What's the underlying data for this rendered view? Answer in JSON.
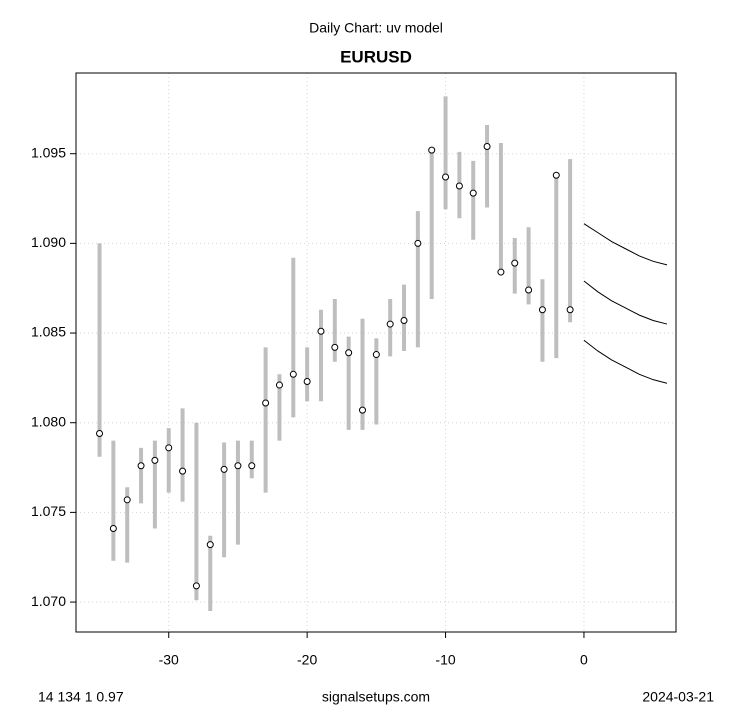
{
  "chart_data": {
    "type": "range",
    "title": "Daily Chart: uv model",
    "subtitle": "EURUSD",
    "x": [
      -35,
      -34,
      -33,
      -32,
      -31,
      -30,
      -29,
      -28,
      -27,
      -26,
      -25,
      -24,
      -23,
      -22,
      -21,
      -20,
      -19,
      -18,
      -17,
      -16,
      -15,
      -14,
      -13,
      -12,
      -11,
      -10,
      -9,
      -8,
      -7,
      -6,
      -5,
      -4,
      -3,
      -2,
      -1
    ],
    "close": [
      1.0794,
      1.0741,
      1.0757,
      1.0776,
      1.0779,
      1.0786,
      1.0773,
      1.0709,
      1.0732,
      1.0774,
      1.0776,
      1.0776,
      1.0811,
      1.0821,
      1.0827,
      1.0823,
      1.0851,
      1.0842,
      1.0839,
      1.0807,
      1.0838,
      1.0855,
      1.0857,
      1.09,
      1.0952,
      1.0937,
      1.0932,
      1.0928,
      1.0954,
      1.0884,
      1.0889,
      1.0874,
      1.0863,
      1.0938,
      1.0863
    ],
    "high": [
      1.09,
      1.079,
      1.0764,
      1.0786,
      1.079,
      1.0797,
      1.0808,
      1.08,
      1.0737,
      1.0789,
      1.079,
      1.079,
      1.0842,
      1.0827,
      1.0892,
      1.0842,
      1.0863,
      1.0869,
      1.0848,
      1.0858,
      1.0847,
      1.0869,
      1.0877,
      1.0918,
      1.0951,
      1.0982,
      1.0951,
      1.0946,
      1.0966,
      1.0956,
      1.0903,
      1.0909,
      1.088,
      1.0939,
      1.0947
    ],
    "low": [
      1.0781,
      1.0723,
      1.0722,
      1.0755,
      1.0741,
      1.0761,
      1.0756,
      1.0701,
      1.0695,
      1.0725,
      1.0732,
      1.0769,
      1.0761,
      1.079,
      1.0803,
      1.0812,
      1.0812,
      1.0834,
      1.0796,
      1.0796,
      1.0799,
      1.0837,
      1.084,
      1.0842,
      1.0869,
      1.0919,
      1.0914,
      1.0902,
      1.092,
      1.0884,
      1.0872,
      1.0866,
      1.0834,
      1.0836,
      1.0856
    ],
    "range_color": "#bebebe",
    "forecast_x": [
      0,
      1,
      2,
      3,
      4,
      5,
      6
    ],
    "forecast": [
      [
        1.0911,
        1.0906,
        1.0901,
        1.0897,
        1.0893,
        1.089,
        1.0888
      ],
      [
        1.0879,
        1.0873,
        1.0868,
        1.0864,
        1.086,
        1.0857,
        1.0855
      ],
      [
        1.0846,
        1.084,
        1.0835,
        1.0831,
        1.0827,
        1.0824,
        1.0822
      ]
    ],
    "forecast_color": "#000000",
    "xlim": [
      -36.7,
      6.65
    ],
    "ylim": [
      1.06833,
      1.0995
    ],
    "xticks": [
      -30,
      -20,
      -10,
      0
    ],
    "yticks": [
      {
        "value": 1.07,
        "label": "1.070"
      },
      1.075,
      {
        "value": 1.08,
        "label": "1.080"
      },
      1.085,
      {
        "value": 1.09,
        "label": "1.090"
      },
      1.095
    ],
    "grid": true,
    "footer_left": "14 134 1 0.97",
    "footer_center": "signalsetups.com",
    "footer_right": "2024-03-21"
  }
}
